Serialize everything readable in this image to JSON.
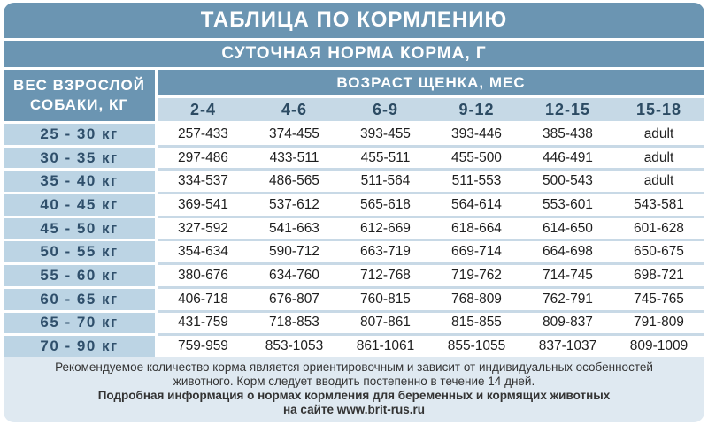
{
  "title": "ТАБЛИЦА ПО КОРМЛЕНИЮ",
  "subtitle": "СУТОЧНАЯ НОРМА КОРМА, Г",
  "weight_header_line1": "ВЕС ВЗРОСЛОЙ",
  "weight_header_line2": "СОБАКИ, КГ",
  "age_header": "ВОЗРАСТ ЩЕНКА, МЕС",
  "age_columns": [
    "2-4",
    "4-6",
    "6-9",
    "9-12",
    "12-15",
    "15-18"
  ],
  "rows": [
    {
      "weight": "25 - 30 кг",
      "values": [
        "257-433",
        "374-455",
        "393-455",
        "393-446",
        "385-438",
        "adult"
      ]
    },
    {
      "weight": "30 - 35 кг",
      "values": [
        "297-486",
        "433-511",
        "455-511",
        "455-500",
        "446-491",
        "adult"
      ]
    },
    {
      "weight": "35 - 40 кг",
      "values": [
        "334-537",
        "486-565",
        "511-564",
        "511-553",
        "500-543",
        "adult"
      ]
    },
    {
      "weight": "40 - 45 кг",
      "values": [
        "369-541",
        "537-612",
        "565-618",
        "564-614",
        "553-601",
        "543-581"
      ]
    },
    {
      "weight": "45 - 50 кг",
      "values": [
        "327-592",
        "541-663",
        "612-669",
        "618-664",
        "614-650",
        "601-628"
      ]
    },
    {
      "weight": "50 - 55 кг",
      "values": [
        "354-634",
        "590-712",
        "663-719",
        "669-714",
        "664-698",
        "650-675"
      ]
    },
    {
      "weight": "55 - 60 кг",
      "values": [
        "380-676",
        "634-760",
        "712-768",
        "719-762",
        "714-745",
        "698-721"
      ]
    },
    {
      "weight": "60 - 65 кг",
      "values": [
        "406-718",
        "676-807",
        "760-815",
        "768-809",
        "762-791",
        "745-765"
      ]
    },
    {
      "weight": "65 - 70 кг",
      "values": [
        "431-759",
        "718-853",
        "807-861",
        "815-855",
        "809-837",
        "791-809"
      ]
    },
    {
      "weight": "70 - 90 кг",
      "values": [
        "759-959",
        "853-1053",
        "861-1061",
        "855-1055",
        "837-1037",
        "809-1009"
      ]
    }
  ],
  "footer": {
    "note_line1": "Рекомендуемое количество корма является ориентировочным и зависит от индивидуальных особенностей",
    "note_line2": "животного. Корм следует вводить постепенно в течение 14 дней.",
    "info_line1": "Подробная информация о нормах кормления для беременных и кормящих животных",
    "info_line2": "на сайте www.brit-rus.ru"
  },
  "colors": {
    "header_blue": "#6b95b2",
    "light_blue": "#c6d9e6",
    "weight_cell_blue": "#bcd4e4",
    "panel_bg": "#dfe9f1"
  }
}
